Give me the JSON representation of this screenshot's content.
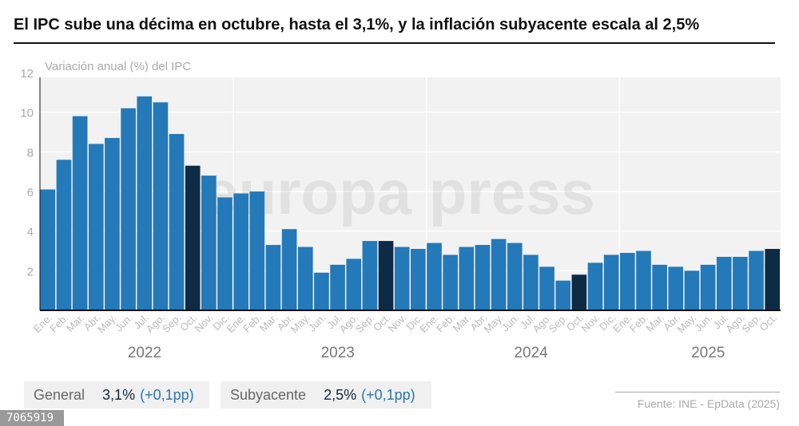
{
  "title": "El IPC sube una décima en octubre, hasta el 3,1%, y la inflación subyacente escala al 2,5%",
  "chart_data": {
    "type": "bar",
    "title": "El IPC sube una décima en octubre, hasta el 3,1%, y la inflación subyacente escala al 2,5%",
    "ylabel": "Variación anual (%) del IPC",
    "ylim": [
      0,
      12
    ],
    "yticks": [
      2,
      4,
      6,
      8,
      10,
      12
    ],
    "grid": true,
    "colors": {
      "bar": "#2479b8",
      "highlight": "#0d2b45",
      "plot_bg": "#f2f2f2"
    },
    "highlight_month": "Oct.",
    "years": [
      {
        "label": "2022",
        "months": [
          "Ene.",
          "Feb.",
          "Mar.",
          "Abr.",
          "May.",
          "Jun.",
          "Jul.",
          "Ago.",
          "Sep.",
          "Oct.",
          "Nov.",
          "Dic."
        ],
        "values": [
          6.1,
          7.6,
          9.8,
          8.4,
          8.7,
          10.2,
          10.8,
          10.5,
          8.9,
          7.3,
          6.8,
          5.7
        ]
      },
      {
        "label": "2023",
        "months": [
          "Ene.",
          "Feb.",
          "Mar.",
          "Abr.",
          "May.",
          "Jun.",
          "Jul.",
          "Ago.",
          "Sep.",
          "Oct.",
          "Nov.",
          "Dic."
        ],
        "values": [
          5.9,
          6.0,
          3.3,
          4.1,
          3.2,
          1.9,
          2.3,
          2.6,
          3.5,
          3.5,
          3.2,
          3.1
        ]
      },
      {
        "label": "2024",
        "months": [
          "Ene.",
          "Feb.",
          "Mar.",
          "Abr.",
          "May.",
          "Jun.",
          "Jul.",
          "Ago.",
          "Sep.",
          "Oct.",
          "Nov.",
          "Dic."
        ],
        "values": [
          3.4,
          2.8,
          3.2,
          3.3,
          3.6,
          3.4,
          2.8,
          2.2,
          1.5,
          1.8,
          2.4,
          2.8
        ]
      },
      {
        "label": "2025",
        "months": [
          "Ene.",
          "Feb.",
          "Mar.",
          "Abr.",
          "May.",
          "Jun.",
          "Jul.",
          "Ago.",
          "Sep.",
          "Oct."
        ],
        "values": [
          2.9,
          3.0,
          2.3,
          2.2,
          2.0,
          2.3,
          2.7,
          2.7,
          3.0,
          3.1
        ]
      }
    ]
  },
  "watermark": "europa press",
  "summary": [
    {
      "label": "General",
      "value": "3,1%",
      "change": "(+0,1pp)"
    },
    {
      "label": "Subyacente",
      "value": "2,5%",
      "change": "(+0,1pp)"
    }
  ],
  "source": "Fuente: INE - EpData (2025)",
  "photo_id": "7065919"
}
